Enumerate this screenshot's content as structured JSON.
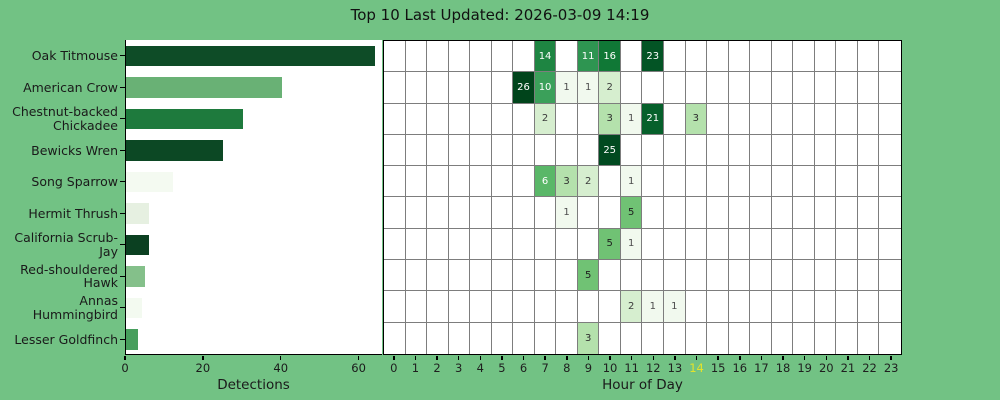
{
  "title": "Top 10 Last Updated: 2026-03-09 14:19",
  "colors": {
    "background": "#72c284",
    "plot_background": "#ffffff",
    "grid_line": "#7d7d7d",
    "spine": "#000000",
    "tick_label": "#1f1f1f",
    "current_hour_label": "#e3e32a"
  },
  "chart_data": [
    {
      "type": "bar",
      "orientation": "horizontal",
      "title": "Top 10 Last Updated: 2026-03-09 14:19",
      "categories": [
        "Oak Titmouse",
        "American Crow",
        "Chestnut-backed Chickadee",
        "Bewicks Wren",
        "Song Sparrow",
        "Hermit Thrush",
        "California Scrub-Jay",
        "Red-shouldered Hawk",
        "Annas Hummingbird",
        "Lesser Goldfinch"
      ],
      "values": [
        64,
        40,
        30,
        25,
        12,
        6,
        6,
        5,
        4,
        3
      ],
      "bar_colors": [
        "#0e4c27",
        "#69b175",
        "#1e7a3d",
        "#0c4824",
        "#f4faf1",
        "#e6f0e1",
        "#0b4021",
        "#84c08a",
        "#f3faf0",
        "#479f5d"
      ],
      "xlabel": "Detections",
      "xticks": [
        "0",
        "20",
        "40",
        "60"
      ],
      "xtick_values": [
        0,
        20,
        40,
        60
      ],
      "xlim": [
        0,
        66
      ],
      "grid": false
    },
    {
      "type": "heatmap",
      "xlabel": "Hour of Day",
      "hours": [
        "0",
        "1",
        "2",
        "3",
        "4",
        "5",
        "6",
        "7",
        "8",
        "9",
        "10",
        "11",
        "12",
        "13",
        "14",
        "15",
        "16",
        "17",
        "18",
        "19",
        "20",
        "21",
        "22",
        "23"
      ],
      "current_hour": "14",
      "row_order_same_as_bar_categories": true,
      "cells": [
        {
          "species": "Oak Titmouse",
          "row": 0,
          "hour": 7,
          "value": 14,
          "bg": "#1e8542",
          "text": "#ffffff"
        },
        {
          "species": "Oak Titmouse",
          "row": 0,
          "hour": 9,
          "value": 11,
          "bg": "#2e9551",
          "text": "#ffffff"
        },
        {
          "species": "Oak Titmouse",
          "row": 0,
          "hour": 10,
          "value": 16,
          "bg": "#107836",
          "text": "#ffffff"
        },
        {
          "species": "Oak Titmouse",
          "row": 0,
          "hour": 12,
          "value": 23,
          "bg": "#035425",
          "text": "#ffffff"
        },
        {
          "species": "American Crow",
          "row": 1,
          "hour": 6,
          "value": 26,
          "bg": "#00441b",
          "text": "#ffffff"
        },
        {
          "species": "American Crow",
          "row": 1,
          "hour": 7,
          "value": 10,
          "bg": "#3ba05a",
          "text": "#ffffff"
        },
        {
          "species": "American Crow",
          "row": 1,
          "hour": 8,
          "value": 1,
          "bg": "#f1f9ee",
          "text": "#4d4d4d"
        },
        {
          "species": "American Crow",
          "row": 1,
          "hour": 9,
          "value": 1,
          "bg": "#f1f9ee",
          "text": "#4d4d4d"
        },
        {
          "species": "American Crow",
          "row": 1,
          "hour": 10,
          "value": 2,
          "bg": "#d6eecf",
          "text": "#3c3c3c"
        },
        {
          "species": "Chestnut-backed Chickadee",
          "row": 2,
          "hour": 7,
          "value": 2,
          "bg": "#d6eecf",
          "text": "#3c3c3c"
        },
        {
          "species": "Chestnut-backed Chickadee",
          "row": 2,
          "hour": 10,
          "value": 3,
          "bg": "#b4e1ac",
          "text": "#2e2e2e"
        },
        {
          "species": "Chestnut-backed Chickadee",
          "row": 2,
          "hour": 11,
          "value": 1,
          "bg": "#f1f9ee",
          "text": "#4d4d4d"
        },
        {
          "species": "Chestnut-backed Chickadee",
          "row": 2,
          "hour": 12,
          "value": 21,
          "bg": "#06602b",
          "text": "#ffffff"
        },
        {
          "species": "Chestnut-backed Chickadee",
          "row": 2,
          "hour": 14,
          "value": 3,
          "bg": "#b4e1ac",
          "text": "#2e2e2e"
        },
        {
          "species": "Bewicks Wren",
          "row": 3,
          "hour": 10,
          "value": 25,
          "bg": "#014a20",
          "text": "#ffffff"
        },
        {
          "species": "Song Sparrow",
          "row": 4,
          "hour": 7,
          "value": 6,
          "bg": "#5ab768",
          "text": "#ffffff"
        },
        {
          "species": "Song Sparrow",
          "row": 4,
          "hour": 8,
          "value": 3,
          "bg": "#b4e1ac",
          "text": "#2e2e2e"
        },
        {
          "species": "Song Sparrow",
          "row": 4,
          "hour": 9,
          "value": 2,
          "bg": "#d6eecf",
          "text": "#3c3c3c"
        },
        {
          "species": "Song Sparrow",
          "row": 4,
          "hour": 11,
          "value": 1,
          "bg": "#f1f9ee",
          "text": "#4d4d4d"
        },
        {
          "species": "Hermit Thrush",
          "row": 5,
          "hour": 8,
          "value": 1,
          "bg": "#f1f9ee",
          "text": "#4d4d4d"
        },
        {
          "species": "Hermit Thrush",
          "row": 5,
          "hour": 11,
          "value": 5,
          "bg": "#70c274",
          "text": "#1f1f1f"
        },
        {
          "species": "California Scrub-Jay",
          "row": 6,
          "hour": 10,
          "value": 5,
          "bg": "#70c274",
          "text": "#1f1f1f"
        },
        {
          "species": "California Scrub-Jay",
          "row": 6,
          "hour": 11,
          "value": 1,
          "bg": "#f1f9ee",
          "text": "#4d4d4d"
        },
        {
          "species": "Red-shouldered Hawk",
          "row": 7,
          "hour": 9,
          "value": 5,
          "bg": "#70c274",
          "text": "#1f1f1f"
        },
        {
          "species": "Annas Hummingbird",
          "row": 8,
          "hour": 11,
          "value": 2,
          "bg": "#d6eecf",
          "text": "#3c3c3c"
        },
        {
          "species": "Annas Hummingbird",
          "row": 8,
          "hour": 12,
          "value": 1,
          "bg": "#f1f9ee",
          "text": "#4d4d4d"
        },
        {
          "species": "Annas Hummingbird",
          "row": 8,
          "hour": 13,
          "value": 1,
          "bg": "#f1f9ee",
          "text": "#4d4d4d"
        },
        {
          "species": "Lesser Goldfinch",
          "row": 9,
          "hour": 9,
          "value": 3,
          "bg": "#b4e1ac",
          "text": "#2e2e2e"
        }
      ]
    }
  ]
}
